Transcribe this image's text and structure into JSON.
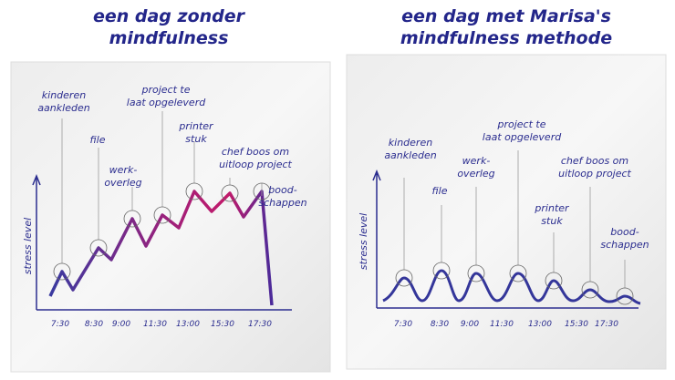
{
  "panels": [
    {
      "title": [
        "een dag zonder",
        "mindfulness"
      ],
      "y_axis_label": "stress level",
      "x_labels": [
        "7:30",
        "8:30",
        "9:00",
        "11:30",
        "13:00",
        "15:30",
        "17:30"
      ],
      "annotations": [
        [
          "kinderen",
          "aankleden"
        ],
        [
          "file"
        ],
        [
          "werk-",
          "overleg"
        ],
        [
          "project te",
          "laat opgeleverd"
        ],
        [
          "printer",
          "stuk"
        ],
        [
          "chef boos om",
          "uitloop project"
        ],
        [
          "bood-",
          "schappen"
        ]
      ]
    },
    {
      "title": [
        "een dag met Marisa's",
        "mindfulness methode"
      ],
      "y_axis_label": "stress level",
      "x_labels": [
        "7:30",
        "8:30",
        "9:00",
        "11:30",
        "13:00",
        "15:30",
        "17:30"
      ],
      "annotations": [
        [
          "kinderen",
          "aankleden"
        ],
        [
          "file"
        ],
        [
          "werk-",
          "overleg"
        ],
        [
          "project te",
          "laat opgeleverd"
        ],
        [
          "printer",
          "stuk"
        ],
        [
          "chef boos om",
          "uitloop project"
        ],
        [
          "bood-",
          "schappen"
        ]
      ]
    }
  ]
}
